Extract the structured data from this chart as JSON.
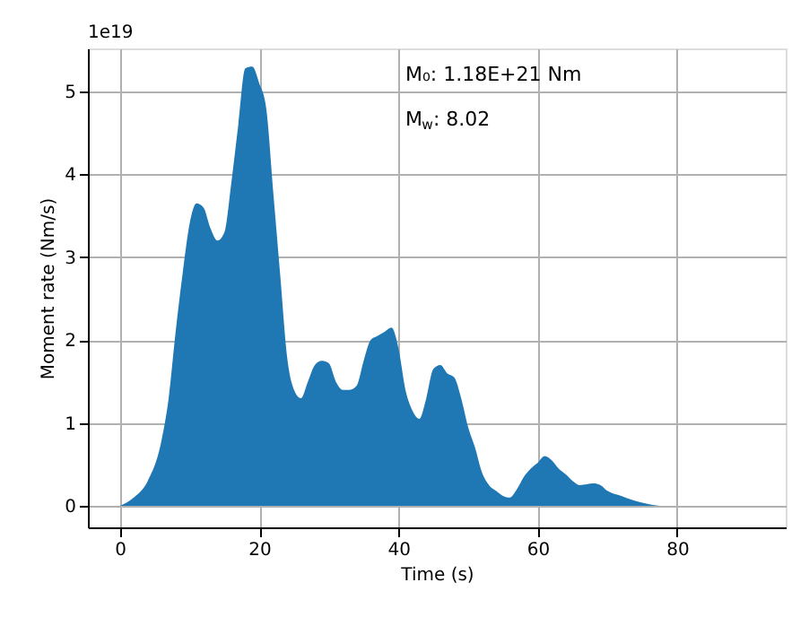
{
  "chart_data": {
    "type": "area",
    "xlabel": "Time (s)",
    "ylabel": "Moment rate (Nm/s)",
    "x": [
      0,
      2,
      4,
      6,
      7,
      8,
      9,
      10,
      11,
      12,
      13,
      14,
      15,
      16,
      17,
      18,
      19,
      20,
      21,
      22,
      23,
      24,
      25,
      26,
      27,
      28,
      29,
      30,
      31,
      32,
      33,
      34,
      35,
      36,
      37,
      38,
      39,
      40,
      41,
      42,
      43,
      44,
      45,
      46,
      47,
      48,
      49,
      50,
      51,
      52,
      53,
      54,
      55,
      56,
      57,
      58,
      59,
      60,
      61,
      62,
      63,
      64,
      65,
      66,
      67,
      68,
      69,
      70,
      72,
      74,
      76,
      78,
      91
    ],
    "series": [
      {
        "color": "#1f77b4",
        "values": [
          0,
          0.1,
          0.3,
          0.8,
          1.3,
          2.1,
          2.8,
          3.4,
          3.65,
          3.6,
          3.35,
          3.2,
          3.3,
          3.9,
          4.6,
          5.28,
          5.3,
          5.1,
          4.8,
          3.8,
          2.8,
          1.8,
          1.4,
          1.3,
          1.5,
          1.7,
          1.75,
          1.72,
          1.5,
          1.4,
          1.4,
          1.45,
          1.75,
          2.0,
          2.05,
          2.1,
          2.15,
          1.9,
          1.4,
          1.15,
          1.05,
          1.3,
          1.65,
          1.7,
          1.6,
          1.55,
          1.3,
          0.95,
          0.7,
          0.4,
          0.25,
          0.18,
          0.12,
          0.1,
          0.2,
          0.35,
          0.45,
          0.52,
          0.6,
          0.55,
          0.45,
          0.38,
          0.3,
          0.25,
          0.26,
          0.27,
          0.25,
          0.18,
          0.12,
          0.06,
          0.02,
          0,
          0
        ]
      }
    ],
    "xlim": [
      -4.6,
      95.6
    ],
    "xticks": [
      0,
      20,
      40,
      60,
      80
    ],
    "ylim": [
      -0.26,
      5.52
    ],
    "yticks": [
      0,
      1,
      2,
      3,
      4,
      5
    ],
    "grid": true,
    "annotations": [
      "1e19",
      "M₀: 1.18E+21 Nm",
      "M$_{w}$: 8.02"
    ]
  }
}
